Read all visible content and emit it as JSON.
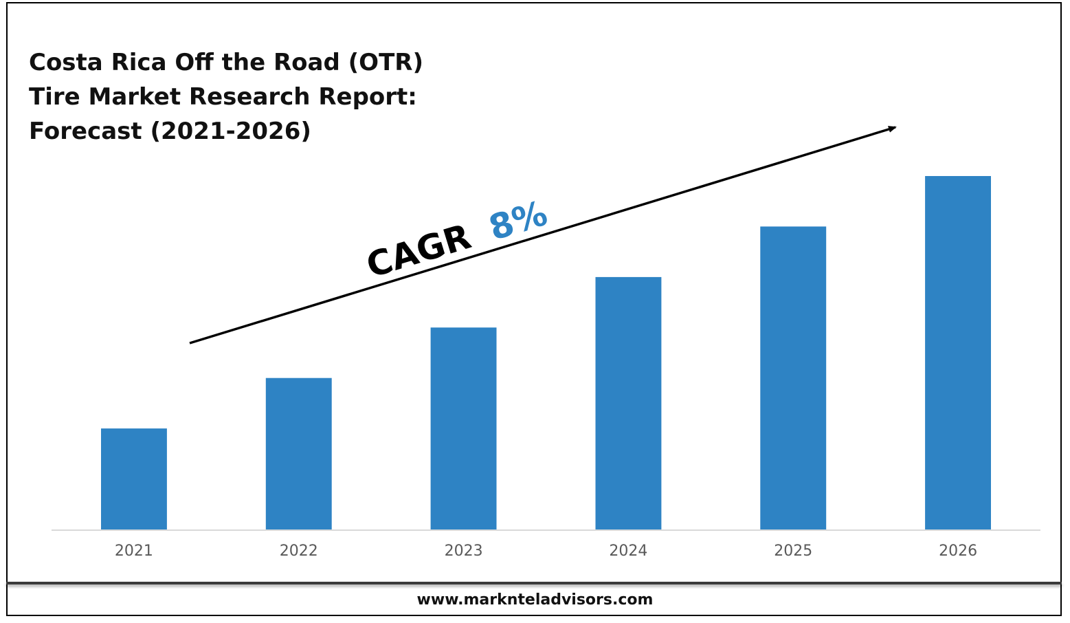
{
  "title_lines": [
    "Costa Rica Off the Road (OTR)",
    "Tire Market Research Report:",
    "Forecast (2021-2026)"
  ],
  "annotation": {
    "prefix": "CAGR",
    "value": "8%",
    "prefix_color": "#000000",
    "value_color": "#2E83C4"
  },
  "footer": {
    "url": "www.marknteladvisors.com"
  },
  "colors": {
    "bar": "#2E83C4",
    "axis": "#D9D9D9",
    "tick_text": "#595959",
    "frame": "#000000"
  },
  "chart_data": {
    "type": "bar",
    "categories": [
      "2021",
      "2022",
      "2023",
      "2024",
      "2025",
      "2026"
    ],
    "values": [
      1.0,
      1.5,
      2.0,
      2.5,
      3.0,
      3.5
    ],
    "title": "Costa Rica Off the Road (OTR) Tire Market Research Report: Forecast (2021-2026)",
    "xlabel": "",
    "ylabel": "",
    "ylim": [
      0,
      3.5
    ],
    "grid": false,
    "legend": "none",
    "value_axis_shown": false
  }
}
